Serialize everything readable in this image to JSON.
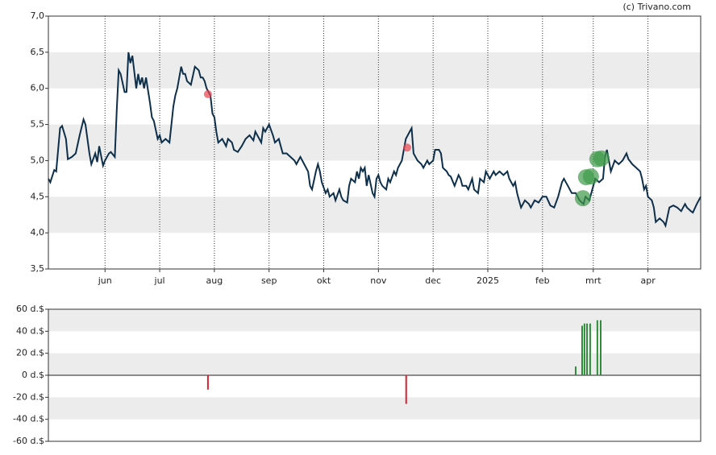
{
  "chart_data": [
    {
      "type": "line",
      "credit": "(c) Trivano.com",
      "xlim": [
        2,
        336
      ],
      "xticks": [
        {
          "value": 31,
          "label": "jun"
        },
        {
          "value": 59,
          "label": "jul"
        },
        {
          "value": 87,
          "label": "aug"
        },
        {
          "value": 115,
          "label": "sep"
        },
        {
          "value": 143,
          "label": "okt"
        },
        {
          "value": 171,
          "label": "nov"
        },
        {
          "value": 199,
          "label": "dec"
        },
        {
          "value": 227,
          "label": "2025"
        },
        {
          "value": 255,
          "label": "feb"
        },
        {
          "value": 281,
          "label": "mrt"
        },
        {
          "value": 309,
          "label": "apr"
        }
      ],
      "ylim": [
        3.5,
        7.0
      ],
      "yticks": [
        {
          "value": 3.5,
          "label": "3,5"
        },
        {
          "value": 4.0,
          "label": "4,0"
        },
        {
          "value": 4.5,
          "label": "4,5"
        },
        {
          "value": 5.0,
          "label": "5,0"
        },
        {
          "value": 5.5,
          "label": "5,5"
        },
        {
          "value": 6.0,
          "label": "6,0"
        },
        {
          "value": 6.5,
          "label": "6,5"
        },
        {
          "value": 7.0,
          "label": "7,0"
        }
      ],
      "grid": true,
      "band_color": "#ececec",
      "series": [
        {
          "color": "#0e2f4a",
          "x": [
            2,
            3,
            5,
            6,
            8,
            9,
            11,
            12,
            14,
            16,
            18,
            20,
            21,
            23,
            24,
            26,
            27,
            28,
            30,
            31,
            33,
            34,
            36,
            37,
            38,
            39,
            41,
            42,
            43,
            44,
            45,
            47,
            48,
            49,
            50,
            51,
            52,
            54,
            55,
            56,
            58,
            59,
            60,
            62,
            64,
            66,
            67,
            68,
            70,
            71,
            72,
            73,
            75,
            77,
            79,
            80,
            81,
            82,
            83,
            85,
            86,
            87,
            88,
            89,
            91,
            93,
            94,
            96,
            97,
            99,
            101,
            103,
            105,
            107,
            108,
            110,
            111,
            112,
            113,
            115,
            117,
            118,
            120,
            121,
            122,
            124,
            126,
            128,
            129,
            130,
            131,
            133,
            135,
            136,
            137,
            139,
            140,
            141,
            142,
            144,
            145,
            146,
            148,
            149,
            151,
            152,
            153,
            155,
            156,
            157,
            159,
            160,
            161,
            162,
            163,
            164,
            165,
            166,
            168,
            169,
            170,
            171,
            172,
            173,
            175,
            176,
            177,
            179,
            180,
            181,
            183,
            185,
            187,
            188,
            189,
            191,
            193,
            194,
            196,
            197,
            199,
            200,
            202,
            203,
            204,
            206,
            207,
            208,
            210,
            212,
            213,
            214,
            216,
            217,
            219,
            220,
            222,
            223,
            225,
            226,
            228,
            230,
            231,
            233,
            235,
            237,
            238,
            240,
            241,
            242,
            243,
            244,
            246,
            248,
            249,
            251,
            253,
            255,
            257,
            259,
            261,
            263,
            265,
            266,
            268,
            270,
            272,
            274,
            276,
            277,
            279,
            281,
            282,
            284,
            286,
            287,
            288,
            289,
            290,
            292,
            294,
            296,
            298,
            299,
            301,
            303,
            305,
            306,
            307,
            308,
            309,
            311,
            312,
            313,
            315,
            317,
            318,
            320,
            322,
            324,
            326,
            328,
            329,
            331,
            332,
            334,
            336
          ],
          "values": [
            4.75,
            4.7,
            4.87,
            4.85,
            5.45,
            5.48,
            5.3,
            5.02,
            5.05,
            5.1,
            5.35,
            5.57,
            5.5,
            5.1,
            4.95,
            5.1,
            4.98,
            5.2,
            4.93,
            5.0,
            5.1,
            5.12,
            5.05,
            5.7,
            6.25,
            6.2,
            5.95,
            5.95,
            6.5,
            6.35,
            6.45,
            6.0,
            6.2,
            6.05,
            6.15,
            6.0,
            6.15,
            5.8,
            5.6,
            5.55,
            5.3,
            5.35,
            5.25,
            5.3,
            5.25,
            5.75,
            5.9,
            6.0,
            6.3,
            6.2,
            6.2,
            6.1,
            6.05,
            6.3,
            6.25,
            6.15,
            6.15,
            6.1,
            6.0,
            5.9,
            5.65,
            5.6,
            5.4,
            5.25,
            5.3,
            5.2,
            5.3,
            5.25,
            5.15,
            5.12,
            5.2,
            5.3,
            5.35,
            5.28,
            5.4,
            5.3,
            5.25,
            5.45,
            5.4,
            5.5,
            5.35,
            5.25,
            5.3,
            5.2,
            5.1,
            5.1,
            5.05,
            5.0,
            4.95,
            5.0,
            5.05,
            4.95,
            4.85,
            4.65,
            4.6,
            4.85,
            4.95,
            4.85,
            4.7,
            4.55,
            4.6,
            4.5,
            4.55,
            4.45,
            4.6,
            4.5,
            4.45,
            4.42,
            4.65,
            4.75,
            4.7,
            4.85,
            4.75,
            4.9,
            4.85,
            4.9,
            4.65,
            4.8,
            4.55,
            4.5,
            4.75,
            4.8,
            4.7,
            4.65,
            4.6,
            4.75,
            4.7,
            4.85,
            4.8,
            4.9,
            5.0,
            5.3,
            5.4,
            5.45,
            5.1,
            5.0,
            4.95,
            4.9,
            5.0,
            4.95,
            5.0,
            5.15,
            5.15,
            5.1,
            4.9,
            4.85,
            4.8,
            4.78,
            4.65,
            4.8,
            4.75,
            4.65,
            4.65,
            4.6,
            4.75,
            4.6,
            4.55,
            4.75,
            4.7,
            4.85,
            4.75,
            4.85,
            4.8,
            4.85,
            4.8,
            4.85,
            4.75,
            4.65,
            4.7,
            4.55,
            4.45,
            4.35,
            4.45,
            4.4,
            4.35,
            4.45,
            4.42,
            4.5,
            4.5,
            4.38,
            4.35,
            4.5,
            4.7,
            4.75,
            4.65,
            4.55,
            4.55,
            4.45,
            4.4,
            4.5,
            4.45,
            4.65,
            4.75,
            4.7,
            4.75,
            5.05,
            5.15,
            5.0,
            4.85,
            5.0,
            4.95,
            5.0,
            5.1,
            5.02,
            4.95,
            4.9,
            4.85,
            4.75,
            4.6,
            4.65,
            4.5,
            4.45,
            4.35,
            4.15,
            4.2,
            4.15,
            4.1,
            4.35,
            4.38,
            4.35,
            4.3,
            4.4,
            4.35,
            4.3,
            4.28,
            4.4,
            4.5
          ]
        },
        {
          "color": "#e8434f",
          "x": [
            83.7,
            185.7
          ],
          "values": [
            5.92,
            5.18
          ]
        },
        {
          "color": "#3f9a4a",
          "x": [
            275.7,
            277.3,
            279.8,
            283.1,
            285.2
          ],
          "values": [
            4.48,
            4.77,
            4.78,
            5.02,
            5.03
          ]
        }
      ]
    },
    {
      "type": "bar",
      "xlim": [
        2,
        336
      ],
      "ylim": [
        -60,
        60
      ],
      "yticks": [
        {
          "value": -60,
          "label": "-60 d.$"
        },
        {
          "value": -40,
          "label": "-40 d.$"
        },
        {
          "value": -20,
          "label": "-20 d.$"
        },
        {
          "value": 0,
          "label": "0 d.$"
        },
        {
          "value": 20,
          "label": "20 d.$"
        },
        {
          "value": 40,
          "label": "40 d.$"
        },
        {
          "value": 60,
          "label": "60 d.$"
        }
      ],
      "grid": true,
      "band_color": "#ececec",
      "colors": {
        "negative": "#d9202f",
        "positive": "#2e8b3a"
      },
      "x": [
        83.7,
        185.2,
        272.0,
        275.3,
        276.5,
        277.8,
        279.4,
        283.1,
        284.8
      ],
      "values": [
        -13,
        -26,
        8,
        45,
        47,
        47,
        47,
        50,
        50
      ]
    }
  ]
}
